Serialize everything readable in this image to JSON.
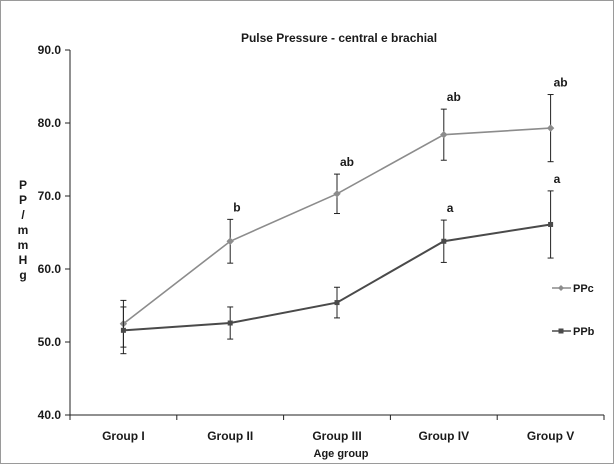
{
  "chart_data": {
    "type": "line",
    "title": "Pulse Pressure - central e brachial",
    "xlabel": "Age group",
    "ylabel": "PP / mmHg",
    "ylabel_chars": [
      "P",
      "P",
      "/",
      "m",
      "m",
      "H",
      "g"
    ],
    "categories": [
      "Group I",
      "Group II",
      "Group III",
      "Group IV",
      "Group V"
    ],
    "ylim": [
      40,
      90
    ],
    "yticks": [
      "40.0",
      "50.0",
      "60.0",
      "70.0",
      "80.0",
      "90.0"
    ],
    "grid": false,
    "legend_position": "right",
    "series": [
      {
        "name": "PPc",
        "color": "#8c8c8c",
        "marker": "diamond",
        "values": [
          52.5,
          63.8,
          70.3,
          78.4,
          79.3
        ],
        "error": [
          3.2,
          3.0,
          2.7,
          3.5,
          4.6
        ],
        "annotations": [
          "",
          "b",
          "ab",
          "ab",
          "ab"
        ]
      },
      {
        "name": "PPb",
        "color": "#4a4a4a",
        "marker": "square",
        "values": [
          51.6,
          52.6,
          55.4,
          63.8,
          66.1
        ],
        "error": [
          3.2,
          2.2,
          2.1,
          2.9,
          4.6
        ],
        "annotations": [
          "",
          "",
          "",
          "a",
          "a"
        ]
      }
    ]
  }
}
